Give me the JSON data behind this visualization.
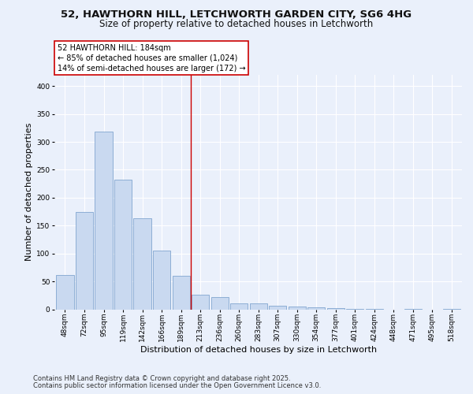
{
  "title_line1": "52, HAWTHORN HILL, LETCHWORTH GARDEN CITY, SG6 4HG",
  "title_line2": "Size of property relative to detached houses in Letchworth",
  "xlabel": "Distribution of detached houses by size in Letchworth",
  "ylabel": "Number of detached properties",
  "categories": [
    "48sqm",
    "72sqm",
    "95sqm",
    "119sqm",
    "142sqm",
    "166sqm",
    "189sqm",
    "213sqm",
    "236sqm",
    "260sqm",
    "283sqm",
    "307sqm",
    "330sqm",
    "354sqm",
    "377sqm",
    "401sqm",
    "424sqm",
    "448sqm",
    "471sqm",
    "495sqm",
    "518sqm"
  ],
  "values": [
    62,
    175,
    318,
    232,
    163,
    105,
    60,
    26,
    22,
    10,
    11,
    7,
    5,
    4,
    2,
    1,
    1,
    0,
    1,
    0,
    1
  ],
  "bar_color": "#c9d9f0",
  "bar_edge_color": "#7099c8",
  "vline_x": 6.5,
  "vline_color": "#cc0000",
  "annotation_text": "52 HAWTHORN HILL: 184sqm\n← 85% of detached houses are smaller (1,024)\n14% of semi-detached houses are larger (172) →",
  "annotation_box_color": "#ffffff",
  "annotation_box_edge_color": "#cc0000",
  "ylim": [
    0,
    420
  ],
  "yticks": [
    0,
    50,
    100,
    150,
    200,
    250,
    300,
    350,
    400
  ],
  "footer_line1": "Contains HM Land Registry data © Crown copyright and database right 2025.",
  "footer_line2": "Contains public sector information licensed under the Open Government Licence v3.0.",
  "bg_color": "#eaf0fb",
  "plot_bg_color": "#eaf0fb",
  "grid_color": "#ffffff",
  "title_fontsize": 9.5,
  "subtitle_fontsize": 8.5,
  "tick_fontsize": 6.5,
  "label_fontsize": 8,
  "footer_fontsize": 6
}
